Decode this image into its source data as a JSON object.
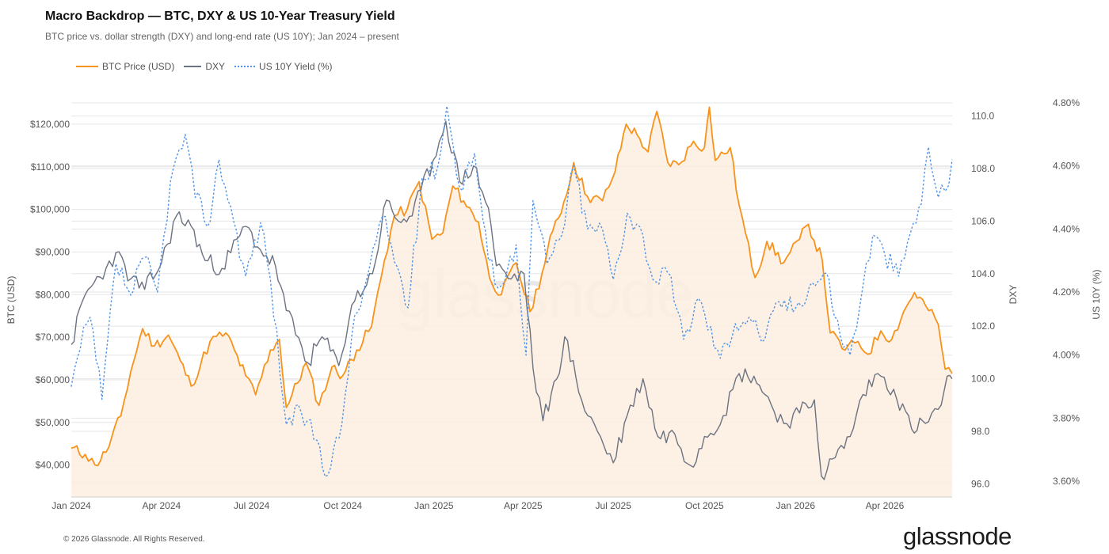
{
  "header": {
    "title": "Macro Backdrop — BTC, DXY & US 10-Year Treasury Yield",
    "subtitle": "BTC price vs. dollar strength (DXY) and long-end rate (US 10Y); Jan 2024 – present"
  },
  "legend": {
    "btc": "BTC Price (USD)",
    "dxy": "DXY",
    "yield": "US 10Y Yield (%)"
  },
  "footer": {
    "copyright": "© 2026 Glassnode. All Rights Reserved."
  },
  "brand": {
    "logo_text": "glassnode",
    "watermark_text": "glassnode"
  },
  "colors": {
    "btc": "#f7931a",
    "btc_fill": "#fdeee0",
    "dxy": "#6b7280",
    "yield": "#4f93e6",
    "grid": "#e6e6e6"
  },
  "chart_data": {
    "type": "line",
    "title": "Macro Backdrop — BTC, DXY & US 10-Year Treasury Yield",
    "x_axis": {
      "type": "date",
      "range": [
        "2024-01-01",
        "2026-06-08"
      ],
      "tick_labels": [
        {
          "date": "2024-01-01",
          "label": "Jan 2024"
        },
        {
          "date": "2024-04-01",
          "label": "Apr 2024"
        },
        {
          "date": "2024-07-01",
          "label": "Jul 2024"
        },
        {
          "date": "2024-10-01",
          "label": "Oct 2024"
        },
        {
          "date": "2025-01-01",
          "label": "Jan 2025"
        },
        {
          "date": "2025-04-01",
          "label": "Apr 2025"
        },
        {
          "date": "2025-07-01",
          "label": "Jul 2025"
        },
        {
          "date": "2025-10-01",
          "label": "Oct 2025"
        },
        {
          "date": "2026-01-01",
          "label": "Jan 2026"
        },
        {
          "date": "2026-04-01",
          "label": "Apr 2026"
        }
      ]
    },
    "y_axes": {
      "btc": {
        "label": "BTC (USD)",
        "range": [
          32500,
          125000
        ],
        "ticks": [
          {
            "value": 40000,
            "label": "$40,000"
          },
          {
            "value": 50000,
            "label": "$50,000"
          },
          {
            "value": 60000,
            "label": "$60,000"
          },
          {
            "value": 70000,
            "label": "$70,000"
          },
          {
            "value": 80000,
            "label": "$80,000"
          },
          {
            "value": 90000,
            "label": "$90,000"
          },
          {
            "value": 100000,
            "label": "$100,000"
          },
          {
            "value": 110000,
            "label": "$110,000"
          },
          {
            "value": 120000,
            "label": "$120,000"
          }
        ]
      },
      "dxy": {
        "label": "DXY",
        "range": [
          95.5,
          110.5
        ],
        "ticks": [
          {
            "value": 96,
            "label": "96.0"
          },
          {
            "value": 98,
            "label": "98.0"
          },
          {
            "value": 100,
            "label": "100.0"
          },
          {
            "value": 102,
            "label": "102.0"
          },
          {
            "value": 104,
            "label": "104.0"
          },
          {
            "value": 106,
            "label": "106.0"
          },
          {
            "value": 108,
            "label": "108.0"
          },
          {
            "value": 110,
            "label": "110.0"
          }
        ]
      },
      "yield": {
        "label": "US 10Y (%)",
        "range": [
          3.55,
          4.8
        ],
        "ticks": [
          {
            "value": 3.6,
            "label": "3.60%"
          },
          {
            "value": 3.8,
            "label": "3.80%"
          },
          {
            "value": 4.0,
            "label": "4.00%"
          },
          {
            "value": 4.2,
            "label": "4.20%"
          },
          {
            "value": 4.4,
            "label": "4.40%"
          },
          {
            "value": 4.6,
            "label": "4.60%"
          },
          {
            "value": 4.8,
            "label": "4.80%"
          }
        ]
      }
    },
    "grid": true,
    "legend_position": "top-left",
    "series": [
      {
        "name": "BTC Price (USD)",
        "axis": "btc",
        "style": "solid-area",
        "points": [
          [
            "2024-01-01",
            44000
          ],
          [
            "2024-01-15",
            42500
          ],
          [
            "2024-01-25",
            40000
          ],
          [
            "2024-02-05",
            43000
          ],
          [
            "2024-02-20",
            51500
          ],
          [
            "2024-03-01",
            62000
          ],
          [
            "2024-03-13",
            72000
          ],
          [
            "2024-03-25",
            68000
          ],
          [
            "2024-04-08",
            70500
          ],
          [
            "2024-04-20",
            64500
          ],
          [
            "2024-05-01",
            58500
          ],
          [
            "2024-05-20",
            69000
          ],
          [
            "2024-06-05",
            71000
          ],
          [
            "2024-06-25",
            61000
          ],
          [
            "2024-07-05",
            56500
          ],
          [
            "2024-07-20",
            67000
          ],
          [
            "2024-07-29",
            69500
          ],
          [
            "2024-08-05",
            53500
          ],
          [
            "2024-08-25",
            64000
          ],
          [
            "2024-09-07",
            54000
          ],
          [
            "2024-09-20",
            63000
          ],
          [
            "2024-10-01",
            61000
          ],
          [
            "2024-10-15",
            67000
          ],
          [
            "2024-10-30",
            72500
          ],
          [
            "2024-11-12",
            88000
          ],
          [
            "2024-11-22",
            98500
          ],
          [
            "2024-12-05",
            100000
          ],
          [
            "2024-12-17",
            106500
          ],
          [
            "2024-12-30",
            93000
          ],
          [
            "2025-01-10",
            94500
          ],
          [
            "2025-01-20",
            105500
          ],
          [
            "2025-01-31",
            102000
          ],
          [
            "2025-02-15",
            97000
          ],
          [
            "2025-02-26",
            84000
          ],
          [
            "2025-03-10",
            80000
          ],
          [
            "2025-03-25",
            87500
          ],
          [
            "2025-04-08",
            76000
          ],
          [
            "2025-04-20",
            85000
          ],
          [
            "2025-05-01",
            95000
          ],
          [
            "2025-05-15",
            103500
          ],
          [
            "2025-05-22",
            111000
          ],
          [
            "2025-06-05",
            103000
          ],
          [
            "2025-06-20",
            102000
          ],
          [
            "2025-07-03",
            109000
          ],
          [
            "2025-07-14",
            120000
          ],
          [
            "2025-07-25",
            117500
          ],
          [
            "2025-08-05",
            113500
          ],
          [
            "2025-08-14",
            123000
          ],
          [
            "2025-08-25",
            111000
          ],
          [
            "2025-09-05",
            110500
          ],
          [
            "2025-09-20",
            116000
          ],
          [
            "2025-10-01",
            114500
          ],
          [
            "2025-10-06",
            124000
          ],
          [
            "2025-10-12",
            111500
          ],
          [
            "2025-10-27",
            114500
          ],
          [
            "2025-11-05",
            101000
          ],
          [
            "2025-11-21",
            84000
          ],
          [
            "2025-12-03",
            92500
          ],
          [
            "2025-12-20",
            87500
          ],
          [
            "2026-01-05",
            93000
          ],
          [
            "2026-01-14",
            96500
          ],
          [
            "2026-01-28",
            88000
          ],
          [
            "2026-02-05",
            71000
          ],
          [
            "2026-02-20",
            67000
          ],
          [
            "2026-03-05",
            69000
          ],
          [
            "2026-03-15",
            66000
          ],
          [
            "2026-03-28",
            71500
          ],
          [
            "2026-04-08",
            69500
          ],
          [
            "2026-04-20",
            76000
          ],
          [
            "2026-05-01",
            80500
          ],
          [
            "2026-05-12",
            77500
          ],
          [
            "2026-05-25",
            73000
          ],
          [
            "2026-06-01",
            62500
          ],
          [
            "2026-06-08",
            61500
          ]
        ]
      },
      {
        "name": "DXY",
        "axis": "dxy",
        "style": "solid",
        "points": [
          [
            "2024-01-01",
            101.3
          ],
          [
            "2024-01-15",
            103.2
          ],
          [
            "2024-02-05",
            104.2
          ],
          [
            "2024-02-15",
            104.8
          ],
          [
            "2024-03-01",
            103.8
          ],
          [
            "2024-03-15",
            103.4
          ],
          [
            "2024-04-01",
            104.4
          ],
          [
            "2024-04-16",
            106.2
          ],
          [
            "2024-05-01",
            105.8
          ],
          [
            "2024-05-15",
            104.5
          ],
          [
            "2024-06-01",
            104.2
          ],
          [
            "2024-06-25",
            105.8
          ],
          [
            "2024-07-10",
            104.9
          ],
          [
            "2024-07-25",
            104.3
          ],
          [
            "2024-08-05",
            102.6
          ],
          [
            "2024-08-27",
            100.6
          ],
          [
            "2024-09-10",
            101.6
          ],
          [
            "2024-09-27",
            100.5
          ],
          [
            "2024-10-10",
            102.8
          ],
          [
            "2024-10-31",
            104.0
          ],
          [
            "2024-11-14",
            106.8
          ],
          [
            "2024-11-26",
            106.0
          ],
          [
            "2024-12-10",
            106.2
          ],
          [
            "2024-12-31",
            108.3
          ],
          [
            "2025-01-13",
            109.8
          ],
          [
            "2025-01-27",
            107.5
          ],
          [
            "2025-02-10",
            108.1
          ],
          [
            "2025-02-25",
            106.5
          ],
          [
            "2025-03-05",
            104.3
          ],
          [
            "2025-03-20",
            103.8
          ],
          [
            "2025-04-02",
            104.0
          ],
          [
            "2025-04-11",
            100.4
          ],
          [
            "2025-04-21",
            98.4
          ],
          [
            "2025-05-05",
            100.0
          ],
          [
            "2025-05-13",
            101.6
          ],
          [
            "2025-05-30",
            99.2
          ],
          [
            "2025-06-15",
            98.0
          ],
          [
            "2025-07-01",
            96.8
          ],
          [
            "2025-07-15",
            98.6
          ],
          [
            "2025-07-31",
            100.0
          ],
          [
            "2025-08-15",
            97.8
          ],
          [
            "2025-09-01",
            97.9
          ],
          [
            "2025-09-17",
            96.7
          ],
          [
            "2025-10-01",
            97.8
          ],
          [
            "2025-10-20",
            98.6
          ],
          [
            "2025-11-05",
            100.2
          ],
          [
            "2025-11-20",
            100.1
          ],
          [
            "2025-12-01",
            99.4
          ],
          [
            "2025-12-20",
            98.3
          ],
          [
            "2026-01-05",
            98.7
          ],
          [
            "2026-01-20",
            99.2
          ],
          [
            "2026-01-27",
            96.3
          ],
          [
            "2026-02-10",
            97.0
          ],
          [
            "2026-02-25",
            97.8
          ],
          [
            "2026-03-10",
            99.4
          ],
          [
            "2026-03-25",
            100.2
          ],
          [
            "2026-04-10",
            99.6
          ],
          [
            "2026-04-28",
            98.1
          ],
          [
            "2026-05-12",
            98.3
          ],
          [
            "2026-05-28",
            99.0
          ],
          [
            "2026-06-03",
            100.1
          ],
          [
            "2026-06-08",
            100.0
          ]
        ]
      },
      {
        "name": "US 10Y Yield (%)",
        "axis": "yield",
        "style": "dotted",
        "points": [
          [
            "2024-01-01",
            3.9
          ],
          [
            "2024-01-10",
            4.02
          ],
          [
            "2024-01-20",
            4.12
          ],
          [
            "2024-02-01",
            3.86
          ],
          [
            "2024-02-15",
            4.29
          ],
          [
            "2024-03-01",
            4.19
          ],
          [
            "2024-03-15",
            4.31
          ],
          [
            "2024-03-28",
            4.2
          ],
          [
            "2024-04-10",
            4.55
          ],
          [
            "2024-04-25",
            4.7
          ],
          [
            "2024-05-05",
            4.5
          ],
          [
            "2024-05-20",
            4.42
          ],
          [
            "2024-05-29",
            4.62
          ],
          [
            "2024-06-10",
            4.47
          ],
          [
            "2024-06-25",
            4.25
          ],
          [
            "2024-07-10",
            4.42
          ],
          [
            "2024-07-20",
            4.24
          ],
          [
            "2024-08-05",
            3.78
          ],
          [
            "2024-08-20",
            3.82
          ],
          [
            "2024-09-05",
            3.73
          ],
          [
            "2024-09-16",
            3.62
          ],
          [
            "2024-09-30",
            3.78
          ],
          [
            "2024-10-10",
            4.06
          ],
          [
            "2024-10-25",
            4.24
          ],
          [
            "2024-11-10",
            4.44
          ],
          [
            "2024-11-25",
            4.28
          ],
          [
            "2024-12-06",
            4.15
          ],
          [
            "2024-12-20",
            4.56
          ],
          [
            "2025-01-05",
            4.6
          ],
          [
            "2025-01-14",
            4.79
          ],
          [
            "2025-01-27",
            4.53
          ],
          [
            "2025-02-11",
            4.64
          ],
          [
            "2025-02-25",
            4.3
          ],
          [
            "2025-03-10",
            4.22
          ],
          [
            "2025-03-25",
            4.35
          ],
          [
            "2025-04-04",
            4.0
          ],
          [
            "2025-04-11",
            4.49
          ],
          [
            "2025-04-25",
            4.29
          ],
          [
            "2025-05-10",
            4.38
          ],
          [
            "2025-05-22",
            4.6
          ],
          [
            "2025-06-05",
            4.4
          ],
          [
            "2025-06-20",
            4.4
          ],
          [
            "2025-07-01",
            4.24
          ],
          [
            "2025-07-15",
            4.45
          ],
          [
            "2025-07-31",
            4.38
          ],
          [
            "2025-08-10",
            4.24
          ],
          [
            "2025-08-25",
            4.26
          ],
          [
            "2025-09-10",
            4.05
          ],
          [
            "2025-09-25",
            4.18
          ],
          [
            "2025-10-17",
            3.99
          ],
          [
            "2025-11-01",
            4.1
          ],
          [
            "2025-11-15",
            4.12
          ],
          [
            "2025-12-01",
            4.05
          ],
          [
            "2025-12-15",
            4.17
          ],
          [
            "2026-01-01",
            4.15
          ],
          [
            "2026-01-15",
            4.22
          ],
          [
            "2026-02-01",
            4.26
          ],
          [
            "2026-02-15",
            4.06
          ],
          [
            "2026-02-25",
            4.0
          ],
          [
            "2026-03-10",
            4.22
          ],
          [
            "2026-03-20",
            4.38
          ],
          [
            "2026-04-01",
            4.32
          ],
          [
            "2026-04-15",
            4.25
          ],
          [
            "2026-04-30",
            4.42
          ],
          [
            "2026-05-08",
            4.48
          ],
          [
            "2026-05-15",
            4.66
          ],
          [
            "2026-05-25",
            4.5
          ],
          [
            "2026-06-01",
            4.52
          ],
          [
            "2026-06-08",
            4.62
          ]
        ]
      }
    ]
  }
}
